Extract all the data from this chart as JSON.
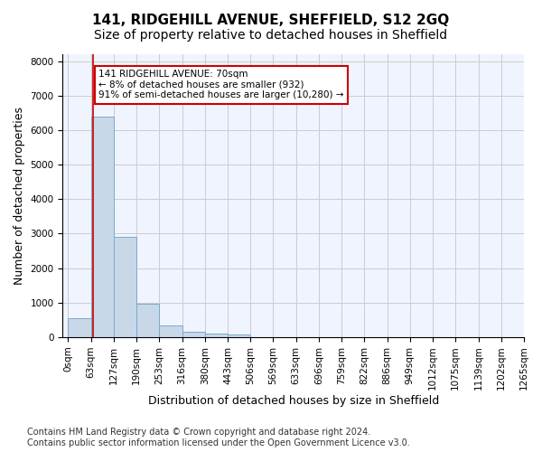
{
  "title1": "141, RIDGEHILL AVENUE, SHEFFIELD, S12 2GQ",
  "title2": "Size of property relative to detached houses in Sheffield",
  "xlabel": "Distribution of detached houses by size in Sheffield",
  "ylabel": "Number of detached properties",
  "bar_values": [
    550,
    6380,
    2920,
    960,
    330,
    155,
    100,
    75,
    0,
    0,
    0,
    0,
    0,
    0,
    0,
    0,
    0,
    0,
    0
  ],
  "bin_labels": [
    "0sqm",
    "63sqm",
    "127sqm",
    "190sqm",
    "253sqm",
    "316sqm",
    "380sqm",
    "443sqm",
    "506sqm",
    "569sqm",
    "633sqm",
    "696sqm",
    "759sqm",
    "822sqm",
    "886sqm",
    "949sqm",
    "1012sqm",
    "1075sqm",
    "1139sqm",
    "1202sqm",
    "1265sqm"
  ],
  "bar_color": "#c8d8e8",
  "bar_edge_color": "#7aaac8",
  "grid_color": "#cccccc",
  "bg_color": "#f0f4ff",
  "property_line_x": 70,
  "annotation_text": "141 RIDGEHILL AVENUE: 70sqm\n← 8% of detached houses are smaller (932)\n91% of semi-detached houses are larger (10,280) →",
  "annotation_box_color": "#ffffff",
  "annotation_box_edge": "#cc0000",
  "property_line_color": "#cc0000",
  "ylim": [
    0,
    8200
  ],
  "yticks": [
    0,
    1000,
    2000,
    3000,
    4000,
    5000,
    6000,
    7000,
    8000
  ],
  "footnote": "Contains HM Land Registry data © Crown copyright and database right 2024.\nContains public sector information licensed under the Open Government Licence v3.0.",
  "title1_fontsize": 11,
  "title2_fontsize": 10,
  "xlabel_fontsize": 9,
  "ylabel_fontsize": 9,
  "tick_fontsize": 7.5,
  "footnote_fontsize": 7
}
